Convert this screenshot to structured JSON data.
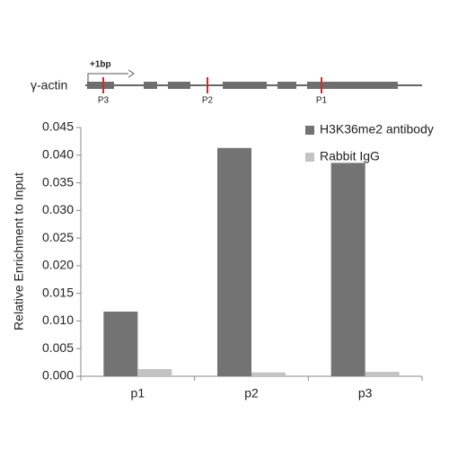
{
  "diagram": {
    "gene_label": "γ-actin",
    "start_label": "+1bp",
    "sites": [
      "P3",
      "P2",
      "P1"
    ]
  },
  "chart_data": {
    "type": "bar",
    "y_label": "Relative Enrichment to Input",
    "categories": [
      "p1",
      "p2",
      "p3"
    ],
    "series": [
      {
        "name": "H3K36me2 antibody",
        "color": "#737373",
        "values": [
          0.0117,
          0.0413,
          0.0386
        ]
      },
      {
        "name": "Rabbit IgG",
        "color": "#c3c3c3",
        "values": [
          0.0013,
          0.0007,
          0.0008
        ]
      }
    ],
    "ylim": [
      0,
      0.045
    ],
    "yticks": [
      {
        "value": 0,
        "label": "0.000"
      },
      {
        "value": 0.005,
        "label": "0.005"
      },
      {
        "value": 0.01,
        "label": "0.010"
      },
      {
        "value": 0.015,
        "label": "0.015"
      },
      {
        "value": 0.02,
        "label": "0.020"
      },
      {
        "value": 0.025,
        "label": "0.025"
      },
      {
        "value": 0.03,
        "label": "0.030"
      },
      {
        "value": 0.035,
        "label": "0.035"
      },
      {
        "value": 0.04,
        "label": "0.040"
      },
      {
        "value": 0.045,
        "label": "0.045"
      }
    ],
    "grid": false,
    "legend": "top-right"
  }
}
